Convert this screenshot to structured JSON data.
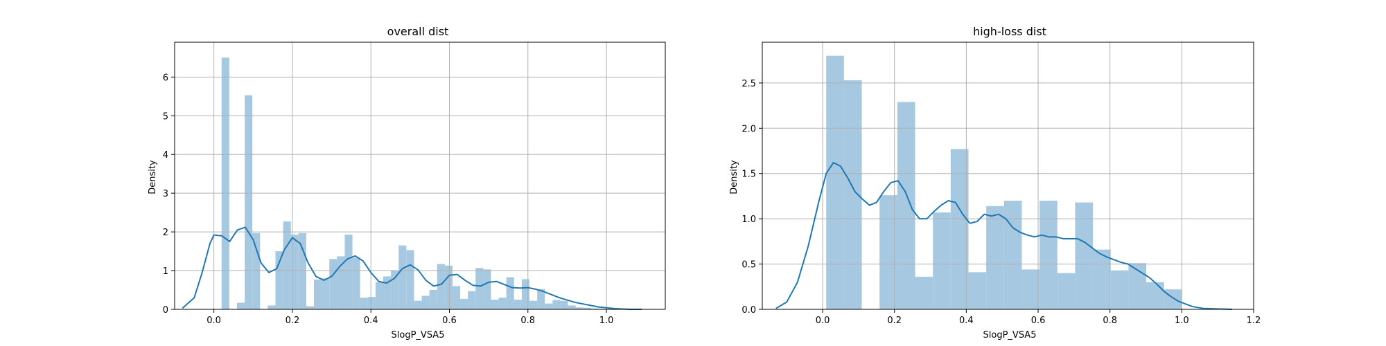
{
  "chart_data": [
    {
      "type": "histogram",
      "title": "overall dist",
      "xlabel": "SlogP_VSA5",
      "ylabel": "Density",
      "xlim": [
        -0.1,
        1.15
      ],
      "ylim": [
        0,
        6.9
      ],
      "xticks": [
        0.0,
        0.2,
        0.4,
        0.6,
        0.8,
        1.0
      ],
      "xtick_labels": [
        "0.0",
        "0.2",
        "0.4",
        "0.6",
        "0.8",
        "1.0"
      ],
      "yticks": [
        0,
        1,
        2,
        3,
        4,
        5,
        6
      ],
      "ytick_labels": [
        "0",
        "1",
        "2",
        "3",
        "4",
        "5",
        "6"
      ],
      "grid": true,
      "bar_color": "#a6c8e0",
      "line_color": "#1f77b4",
      "bins": {
        "start": 0.0,
        "width": 0.01961,
        "heights": [
          0,
          6.5,
          0,
          0.17,
          5.53,
          1.97,
          0,
          0.1,
          1.5,
          2.27,
          1.93,
          1.97,
          0.08,
          0.77,
          0.8,
          1.3,
          1.37,
          1.93,
          1.33,
          0.3,
          0.32,
          0.7,
          0.85,
          1.0,
          1.65,
          1.53,
          0.22,
          0.35,
          0.5,
          1.17,
          1.13,
          0.6,
          0.27,
          0.47,
          1.07,
          1.03,
          0.25,
          0.3,
          0.83,
          0.25,
          0.78,
          0.22,
          0.52,
          0.15,
          0.24,
          0.22,
          0.1,
          0.05,
          0.04,
          0.02,
          0.01
        ]
      },
      "kde": {
        "x": [
          -0.08,
          -0.05,
          -0.03,
          -0.01,
          0.0,
          0.02,
          0.04,
          0.06,
          0.08,
          0.1,
          0.12,
          0.14,
          0.16,
          0.18,
          0.2,
          0.22,
          0.24,
          0.26,
          0.28,
          0.3,
          0.32,
          0.34,
          0.36,
          0.38,
          0.4,
          0.42,
          0.44,
          0.46,
          0.48,
          0.5,
          0.52,
          0.54,
          0.56,
          0.58,
          0.6,
          0.62,
          0.64,
          0.66,
          0.68,
          0.7,
          0.72,
          0.74,
          0.76,
          0.78,
          0.8,
          0.82,
          0.84,
          0.86,
          0.88,
          0.9,
          0.92,
          0.94,
          0.96,
          0.98,
          1.0,
          1.02,
          1.04,
          1.06,
          1.09
        ],
        "y": [
          0.03,
          0.3,
          0.95,
          1.7,
          1.92,
          1.9,
          1.75,
          2.05,
          2.12,
          1.8,
          1.2,
          0.95,
          1.05,
          1.55,
          1.85,
          1.7,
          1.2,
          0.85,
          0.75,
          0.85,
          1.1,
          1.3,
          1.38,
          1.25,
          0.95,
          0.72,
          0.68,
          0.8,
          1.05,
          1.15,
          1.02,
          0.75,
          0.6,
          0.65,
          0.88,
          0.9,
          0.75,
          0.62,
          0.6,
          0.7,
          0.72,
          0.64,
          0.56,
          0.55,
          0.56,
          0.52,
          0.46,
          0.38,
          0.3,
          0.24,
          0.18,
          0.14,
          0.1,
          0.06,
          0.04,
          0.02,
          0.01,
          0.0,
          0.0
        ]
      }
    },
    {
      "type": "histogram",
      "title": "high-loss dist",
      "xlabel": "SlogP_VSA5",
      "ylabel": "Density",
      "xlim": [
        -0.168,
        1.2
      ],
      "ylim": [
        0,
        2.95
      ],
      "xticks": [
        0.0,
        0.2,
        0.4,
        0.6,
        0.8,
        1.0,
        1.2
      ],
      "xtick_labels": [
        "0.0",
        "0.2",
        "0.4",
        "0.6",
        "0.8",
        "1.0",
        "1.2"
      ],
      "yticks": [
        0,
        0.5,
        1.0,
        1.5,
        2.0,
        2.5
      ],
      "ytick_labels": [
        "0.0",
        "0.5",
        "1.0",
        "1.5",
        "2.0",
        "2.5"
      ],
      "grid": true,
      "bar_color": "#a6c8e0",
      "line_color": "#1f77b4",
      "bins": {
        "start": 0.01,
        "width": 0.0495,
        "heights": [
          2.8,
          2.53,
          0,
          1.26,
          2.29,
          0.36,
          1.07,
          1.77,
          0.41,
          1.14,
          1.2,
          0.44,
          1.2,
          0.4,
          1.18,
          0.66,
          0.43,
          0.51,
          0.3,
          0.22
        ]
      },
      "kde": {
        "x": [
          -0.13,
          -0.1,
          -0.07,
          -0.04,
          -0.01,
          0.01,
          0.03,
          0.05,
          0.07,
          0.09,
          0.11,
          0.13,
          0.15,
          0.17,
          0.19,
          0.21,
          0.23,
          0.25,
          0.27,
          0.29,
          0.31,
          0.33,
          0.35,
          0.37,
          0.39,
          0.41,
          0.43,
          0.45,
          0.47,
          0.49,
          0.51,
          0.53,
          0.55,
          0.57,
          0.59,
          0.61,
          0.63,
          0.65,
          0.67,
          0.69,
          0.71,
          0.73,
          0.75,
          0.77,
          0.79,
          0.81,
          0.83,
          0.85,
          0.87,
          0.89,
          0.91,
          0.93,
          0.95,
          0.97,
          0.99,
          1.01,
          1.03,
          1.06,
          1.1,
          1.14
        ],
        "y": [
          0.01,
          0.08,
          0.3,
          0.7,
          1.2,
          1.5,
          1.62,
          1.58,
          1.45,
          1.3,
          1.22,
          1.15,
          1.18,
          1.3,
          1.4,
          1.42,
          1.3,
          1.1,
          1.0,
          1.0,
          1.08,
          1.15,
          1.2,
          1.18,
          1.05,
          0.95,
          0.97,
          1.05,
          1.03,
          1.05,
          1.0,
          0.9,
          0.85,
          0.82,
          0.8,
          0.82,
          0.8,
          0.8,
          0.78,
          0.78,
          0.78,
          0.74,
          0.68,
          0.62,
          0.58,
          0.55,
          0.52,
          0.5,
          0.45,
          0.4,
          0.35,
          0.28,
          0.2,
          0.14,
          0.09,
          0.06,
          0.03,
          0.01,
          0.005,
          0.0
        ]
      }
    }
  ]
}
